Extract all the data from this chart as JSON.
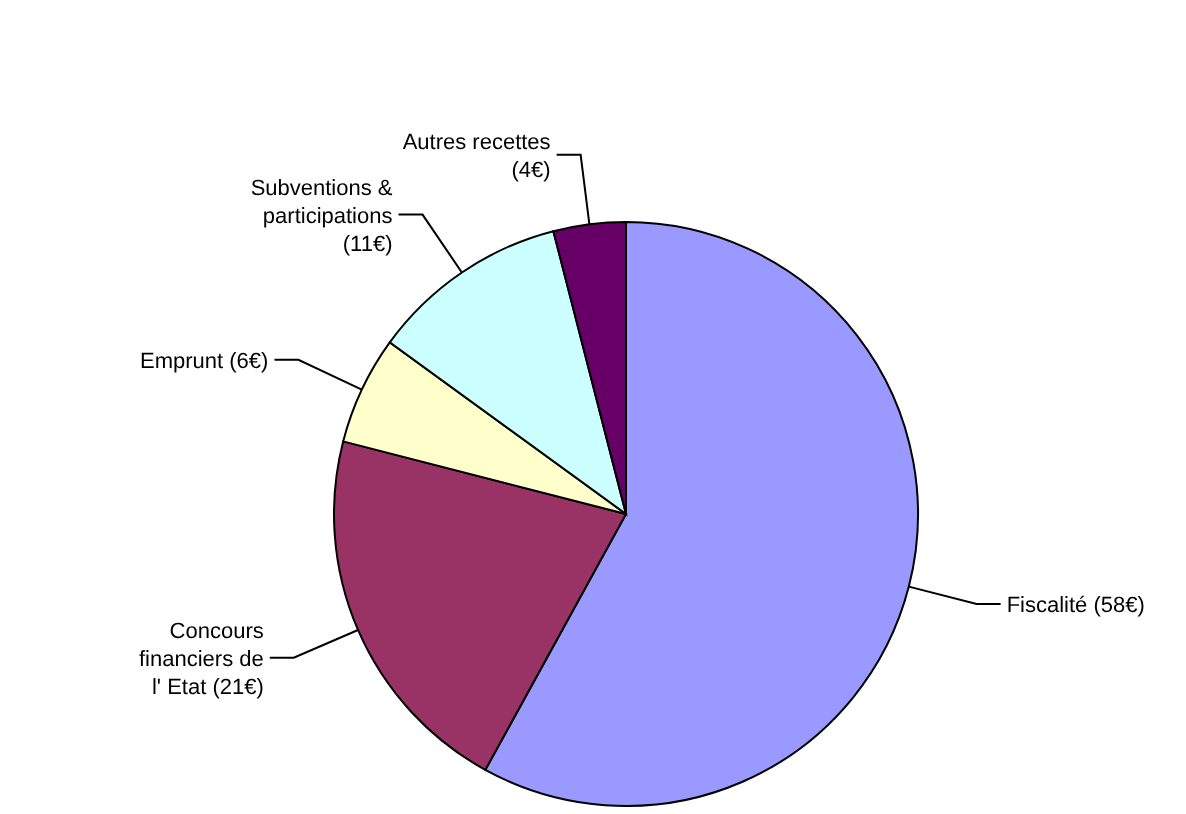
{
  "chart_data": {
    "type": "pie",
    "categories": [
      "Fiscalité",
      "Concours financiers de l' Etat",
      "Emprunt",
      "Subventions & participations",
      "Autres recettes"
    ],
    "values": [
      58,
      21,
      6,
      11,
      4
    ],
    "value_labels": [
      "(58€)",
      "(21€)",
      "(6€)",
      "(11€)",
      "(4€)"
    ],
    "colors": [
      "#9999ff",
      "#993366",
      "#ffffcc",
      "#ccffff",
      "#660066"
    ],
    "legend": false
  }
}
